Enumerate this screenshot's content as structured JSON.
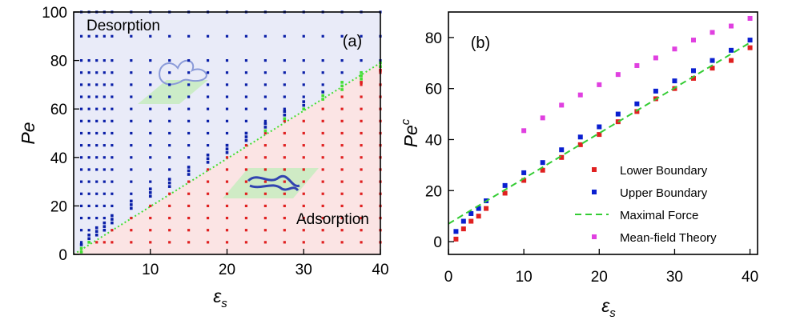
{
  "chart_data": [
    {
      "panel": "(a)",
      "type": "scatter",
      "xlabel": "εs",
      "ylabel": "Pe",
      "xlim": [
        0,
        40
      ],
      "ylim": [
        0,
        100
      ],
      "xticks": [
        "10",
        "20",
        "30",
        "40"
      ],
      "yticks": [
        "0",
        "20",
        "40",
        "60",
        "80",
        "100"
      ],
      "grid": false,
      "regions": [
        {
          "label": "Desorption",
          "color": "#e9ebf8",
          "text_color": "#1a1a9c"
        },
        {
          "label": "Adsorption",
          "color": "#fbe4e4",
          "text_color": "#e02020"
        }
      ],
      "colors": {
        "desorption_points": "#0a1fa8",
        "adsorption_points": "#e02020",
        "boundary": "#44dd33"
      },
      "x": [
        1,
        2,
        3,
        4,
        5,
        7.5,
        10,
        12.5,
        15,
        17.5,
        20,
        22.5,
        25,
        27.5,
        30,
        32.5,
        35,
        37.5,
        40
      ],
      "y_grid": [
        5,
        10,
        15,
        20,
        25,
        30,
        35,
        40,
        45,
        50,
        55,
        60,
        65,
        70,
        75,
        80,
        90,
        100
      ],
      "boundary_line": {
        "x": [
          0,
          40
        ],
        "y": [
          0,
          79
        ]
      },
      "transition_lower": [
        1,
        5,
        8,
        10,
        13,
        19,
        24,
        28,
        33,
        38,
        42,
        47,
        51,
        56,
        60,
        64,
        68,
        71,
        76
      ],
      "transition_upper": [
        4,
        8,
        11,
        13,
        16,
        22,
        27,
        31,
        36,
        41,
        45,
        50,
        54,
        59,
        63,
        67,
        71,
        75,
        79
      ]
    },
    {
      "panel": "(b)",
      "type": "scatter",
      "xlabel": "εs",
      "ylabel": "Pec",
      "xlim": [
        0,
        41
      ],
      "ylim": [
        -5,
        90
      ],
      "xticks": [
        "0",
        "10",
        "20",
        "30",
        "40"
      ],
      "yticks": [
        "0",
        "20",
        "40",
        "60",
        "80"
      ],
      "grid": false,
      "legend_position": "lower-right",
      "series": [
        {
          "name": "Lower Boundary",
          "color": "#e02020",
          "marker": "square",
          "x": [
            1,
            2,
            3,
            4,
            5,
            7.5,
            10,
            12.5,
            15,
            17.5,
            20,
            22.5,
            25,
            27.5,
            30,
            32.5,
            35,
            37.5,
            40
          ],
          "y": [
            1,
            5,
            8,
            10,
            13,
            19,
            24,
            28,
            33,
            38,
            42,
            47,
            51,
            56,
            60,
            64,
            68,
            71,
            76
          ]
        },
        {
          "name": "Upper Boundary",
          "color": "#0a1fd0",
          "marker": "square",
          "x": [
            1,
            2,
            3,
            4,
            5,
            7.5,
            10,
            12.5,
            15,
            17.5,
            20,
            22.5,
            25,
            27.5,
            30,
            32.5,
            35,
            37.5,
            40
          ],
          "y": [
            4,
            8,
            11,
            13,
            16,
            22,
            27,
            31,
            36,
            41,
            45,
            50,
            54,
            59,
            63,
            67,
            71,
            75,
            79
          ]
        },
        {
          "name": "Maximal Force",
          "color": "#33cc33",
          "marker": "dashed-line",
          "x": [
            0,
            40
          ],
          "y": [
            7,
            78
          ]
        },
        {
          "name": "Mean-field Theory",
          "color": "#e040e0",
          "marker": "square",
          "x": [
            10,
            12.5,
            15,
            17.5,
            20,
            22.5,
            25,
            27.5,
            30,
            32.5,
            35,
            37.5,
            40
          ],
          "y": [
            43.5,
            48.5,
            53.5,
            57.5,
            61.5,
            65.5,
            69,
            72,
            75.5,
            79,
            82,
            84.5,
            87.5
          ]
        }
      ]
    }
  ]
}
